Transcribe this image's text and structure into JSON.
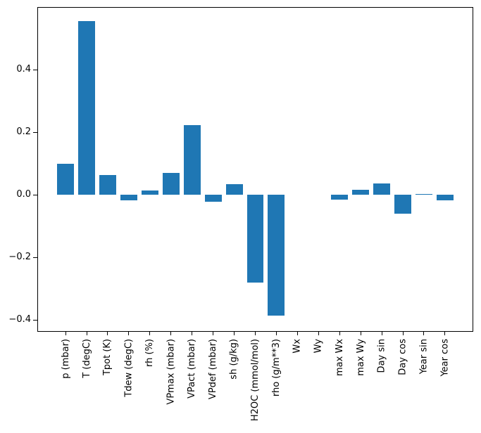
{
  "chart_data": {
    "type": "bar",
    "categories": [
      "p (mbar)",
      "T (degC)",
      "Tpot (K)",
      "Tdew (degC)",
      "rh (%)",
      "VPmax (mbar)",
      "VPact (mbar)",
      "VPdef (mbar)",
      "sh (g/kg)",
      "H2OC (mmol/mol)",
      "rho (g/m**3)",
      "Wx",
      "Wy",
      "max Wx",
      "max Wy",
      "Day sin",
      "Day cos",
      "Year sin",
      "Year cos"
    ],
    "values": [
      0.098,
      0.554,
      0.062,
      -0.018,
      0.013,
      0.069,
      0.222,
      -0.022,
      0.033,
      -0.28,
      -0.387,
      0.0,
      0.0,
      -0.016,
      0.016,
      0.036,
      -0.061,
      0.003,
      -0.018
    ],
    "yticks": [
      0.4,
      0.2,
      0.0,
      -0.2,
      -0.4
    ],
    "ytick_labels": [
      "0.4",
      "0.2",
      "0.0",
      "−0.2",
      "−0.4"
    ],
    "ylim": [
      -0.438,
      0.6
    ],
    "x_tick_label_rotation": 90,
    "bar_color": "#1f77b4",
    "grid": false,
    "legend": "none"
  }
}
